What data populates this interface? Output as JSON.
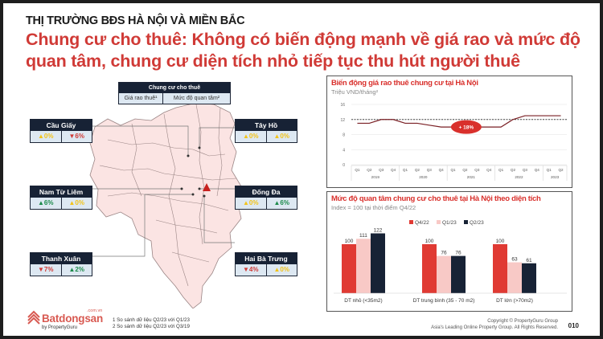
{
  "header": {
    "kicker": "THỊ TRƯỜNG BĐS HÀ NỘI VÀ MIỀN BẮC",
    "headline": "Chung cư cho thuê: Không có biến động mạnh về giá rao và mức độ quan tâm, chung cư diện tích nhỏ tiếp tục thu hút người thuê"
  },
  "map_legend": {
    "title": "Chung cư cho thuê",
    "col1": "Giá rao thuê¹",
    "col2": "Mức độ quan tâm²"
  },
  "districts": [
    {
      "name": "Cầu Giấy",
      "price": "▲0%",
      "price_tone": "up-yellow",
      "interest": "▼6%",
      "interest_tone": "down-red"
    },
    {
      "name": "Tây Hồ",
      "price": "▲0%",
      "price_tone": "up-yellow",
      "interest": "▲0%",
      "interest_tone": "up-yellow"
    },
    {
      "name": "Nam Từ Liêm",
      "price": "▲6%",
      "price_tone": "up-green",
      "interest": "▲0%",
      "interest_tone": "up-yellow"
    },
    {
      "name": "Đống Đa",
      "price": "▲0%",
      "price_tone": "up-yellow",
      "interest": "▲6%",
      "interest_tone": "up-green"
    },
    {
      "name": "Thanh Xuân",
      "price": "▼7%",
      "price_tone": "down-red",
      "interest": "▲2%",
      "interest_tone": "up-green"
    },
    {
      "name": "Hai Bà Trưng",
      "price": "▼4%",
      "price_tone": "down-red",
      "interest": "▲0%",
      "interest_tone": "up-yellow"
    }
  ],
  "footnotes": {
    "n1": "1 So sánh dữ liệu Q2/23 với Q1/23",
    "n2": "2 So sánh dữ liệu Q2/23 với Q3/19"
  },
  "logo": {
    "name": "Batdongsan",
    "domain": ".com.vn",
    "sub": "by PropertyGuru"
  },
  "footer": {
    "copyright": "Copyright © PropertyGuru Group",
    "tagline": "Asia's Leading Online Property Group. All Rights Reserved.",
    "page": "010"
  },
  "colors": {
    "accent_red": "#d9302c",
    "navy": "#172235",
    "pink": "#f8c9c6",
    "map_fill": "#fbe4e3"
  },
  "chart_data": [
    {
      "type": "line",
      "title": "Biến động giá rao thuê chung cư tại Hà Nội",
      "ylabel": "Triệu VND/tháng²",
      "ylim": [
        0,
        16
      ],
      "yticks": [
        0,
        4,
        8,
        12,
        16
      ],
      "x": [
        "Q1 2019",
        "Q2 2019",
        "Q3 2019",
        "Q4 2019",
        "Q1 2020",
        "Q2 2020",
        "Q3 2020",
        "Q4 2020",
        "Q1 2021",
        "Q2 2021",
        "Q3 2021",
        "Q4 2021",
        "Q1 2022",
        "Q2 2022",
        "Q3 2022",
        "Q4 2022",
        "Q1 2023",
        "Q2 2023"
      ],
      "quarters": [
        "Q1",
        "Q2",
        "Q3",
        "Q4",
        "Q1",
        "Q2",
        "Q3",
        "Q4",
        "Q1",
        "Q2",
        "Q3",
        "Q4",
        "Q1",
        "Q2",
        "Q3",
        "Q4",
        "Q1",
        "Q2"
      ],
      "years": [
        "2019",
        "2020",
        "2021",
        "2022",
        "2023"
      ],
      "series": [
        {
          "name": "Giá rao thuê",
          "values": [
            11,
            11,
            12,
            12,
            11,
            11,
            10.5,
            10,
            10,
            10,
            10,
            10,
            10,
            12,
            13,
            13,
            13,
            13
          ]
        }
      ],
      "reference_line": 12,
      "annotation": "+ 18%",
      "grid": true
    },
    {
      "type": "bar",
      "title": "Mức độ quan tâm chung cư cho thuê tại Hà Nội theo diện tích",
      "subtitle": "Index = 100 tại thời điểm Q4/22",
      "categories": [
        "DT nhỏ (<35m2)",
        "DT trung bình (35 - 70 m2)",
        "DT lớn (>70m2)"
      ],
      "series": [
        {
          "name": "Q4/22",
          "color": "#e03a33",
          "values": [
            100,
            100,
            100
          ]
        },
        {
          "name": "Q1/23",
          "color": "#f8c9c6",
          "values": [
            111,
            76,
            63
          ]
        },
        {
          "name": "Q2/23",
          "color": "#172235",
          "values": [
            122,
            76,
            61
          ]
        }
      ],
      "legend_position": "top",
      "ylim": [
        0,
        130
      ]
    }
  ]
}
